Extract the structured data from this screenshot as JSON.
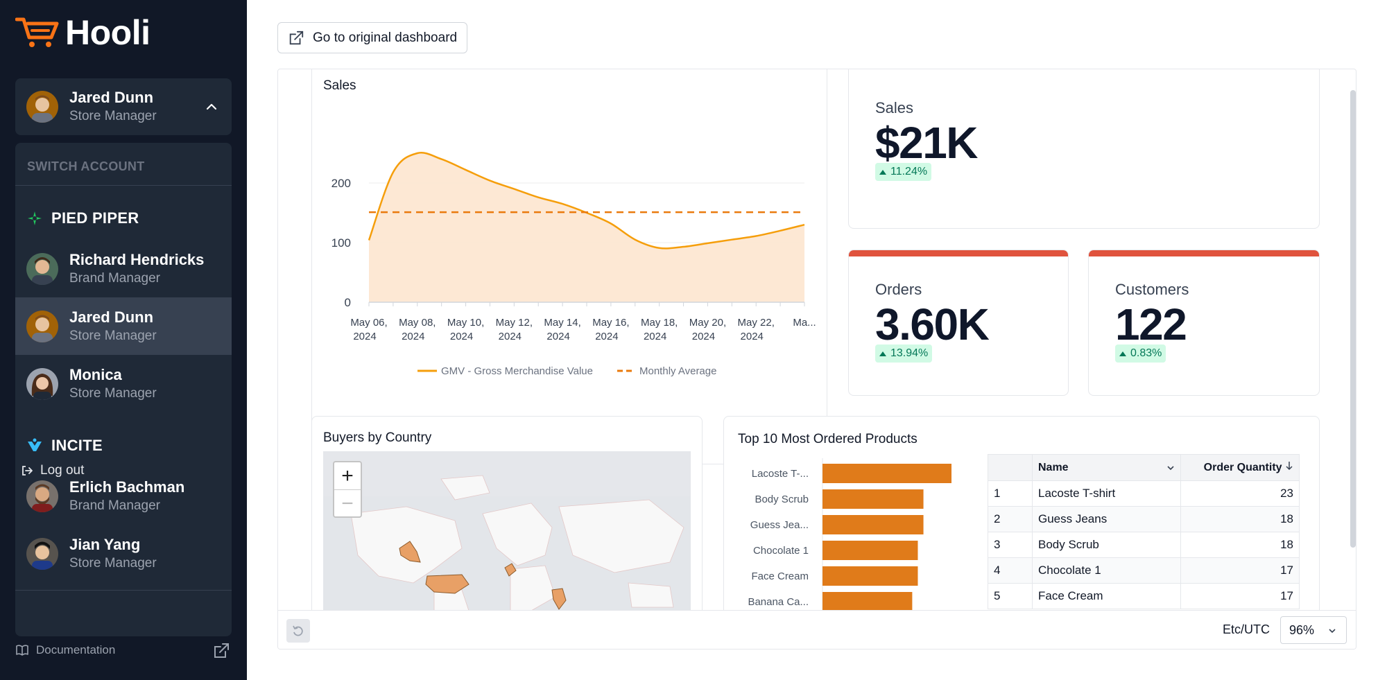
{
  "app": {
    "name": "Hooli"
  },
  "current_user": {
    "name": "Jared Dunn",
    "role": "Store Manager"
  },
  "switch_account_label": "SWITCH ACCOUNT",
  "orgs": [
    {
      "name": "PIED PIPER",
      "accounts": [
        {
          "name": "Richard Hendricks",
          "role": "Brand Manager"
        },
        {
          "name": "Jared Dunn",
          "role": "Store Manager"
        },
        {
          "name": "Monica",
          "role": "Store Manager"
        }
      ]
    },
    {
      "name": "INCITE",
      "accounts": [
        {
          "name": "Erlich Bachman",
          "role": "Brand Manager"
        },
        {
          "name": "Jian Yang",
          "role": "Store Manager"
        }
      ]
    }
  ],
  "logout_label": "Log out",
  "documentation_label": "Documentation",
  "goto_button_label": "Go to original dashboard",
  "sales_chart_title": "Sales",
  "kpis": {
    "sales": {
      "label": "Sales",
      "value": "$21K",
      "change": "11.24%"
    },
    "orders": {
      "label": "Orders",
      "value": "3.60K",
      "change": "13.94%"
    },
    "customers": {
      "label": "Customers",
      "value": "122",
      "change": "0.83%"
    }
  },
  "kpi_bar_color": "#e0533d",
  "buyers_title": "Buyers by Country",
  "zoom_in": "+",
  "zoom_out": "−",
  "top_products_title": "Top 10 Most Ordered Products",
  "table": {
    "columns": [
      "",
      "Name",
      "Order Quantity"
    ],
    "rows": [
      [
        "1",
        "Lacoste T-shirt",
        "23"
      ],
      [
        "2",
        "Guess Jeans",
        "18"
      ],
      [
        "3",
        "Body Scrub",
        "18"
      ],
      [
        "4",
        "Chocolate 1",
        "17"
      ],
      [
        "5",
        "Face Cream",
        "17"
      ]
    ]
  },
  "footer": {
    "timezone": "Etc/UTC",
    "zoom": "96%"
  },
  "chart_data": [
    {
      "type": "area",
      "title": "Sales",
      "x": [
        "May 06, 2024",
        "May 07, 2024",
        "May 08, 2024",
        "May 09, 2024",
        "May 10, 2024",
        "May 11, 2024",
        "May 12, 2024",
        "May 13, 2024",
        "May 14, 2024",
        "May 15, 2024",
        "May 16, 2024",
        "May 17, 2024",
        "May 18, 2024",
        "May 19, 2024",
        "May 20, 2024",
        "May 21, 2024",
        "May 22, 2024",
        "May 23, 2024",
        "May 24, 2024"
      ],
      "tick_labels": [
        "May 06, 2024",
        "May 08, 2024",
        "May 10, 2024",
        "May 12, 2024",
        "May 14, 2024",
        "May 16, 2024",
        "May 18, 2024",
        "May 20, 2024",
        "May 22, 2024",
        "Ma..."
      ],
      "series": [
        {
          "name": "GMV - Gross Merchandise Value",
          "values": [
            104,
            218,
            250,
            240,
            222,
            204,
            190,
            176,
            165,
            150,
            132,
            105,
            91,
            93,
            99,
            105,
            111,
            120,
            130
          ],
          "color": "#f59e0b"
        },
        {
          "name": "Monthly Average",
          "values": [
            151,
            151,
            151,
            151,
            151,
            151,
            151,
            151,
            151,
            151,
            151,
            151,
            151,
            151,
            151,
            151,
            151,
            151,
            151
          ],
          "color": "#ea7a0c",
          "style": "dashed"
        }
      ],
      "ylim": [
        0,
        250
      ],
      "yticks": [
        0,
        100,
        200
      ],
      "legend": "bottom",
      "grid": true
    },
    {
      "type": "bar",
      "title": "Top 10 Most Ordered Products",
      "orientation": "horizontal",
      "categories": [
        "Lacoste T-...",
        "Body Scrub",
        "Guess Jea...",
        "Chocolate 1",
        "Face Cream",
        "Banana Ca..."
      ],
      "values": [
        23,
        18,
        18,
        17,
        17,
        16
      ],
      "color": "#e07b1a"
    }
  ]
}
